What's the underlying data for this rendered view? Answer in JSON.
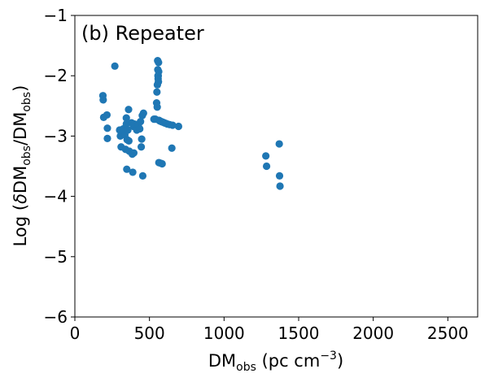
{
  "chart_data": {
    "type": "scatter",
    "panel_label": "(b) Repeater",
    "xlabel": {
      "main": "DM",
      "sub": "obs",
      "rest": " (pc cm",
      "sup": "−3",
      "end": ")"
    },
    "ylabel": {
      "p1": "Log (",
      "delta": "δ",
      "p2": "DM",
      "sub1": "obs",
      "p3": "/DM",
      "sub2": "obs",
      "p4": ")"
    },
    "xlim": [
      0,
      2700
    ],
    "ylim": [
      -6,
      -1
    ],
    "x_ticks": [
      0,
      500,
      1000,
      1500,
      2000,
      2500
    ],
    "y_ticks": [
      -6,
      -5,
      -4,
      -3,
      -2,
      -1
    ],
    "x_tick_labels": [
      "0",
      "500",
      "1000",
      "1500",
      "2000",
      "2500"
    ],
    "y_tick_labels": [
      "−6",
      "−5",
      "−4",
      "−3",
      "−2",
      "−1"
    ],
    "marker_color": "#1f77b4",
    "grid": false,
    "points": [
      {
        "x": 188,
        "y": -2.33
      },
      {
        "x": 190,
        "y": -2.4
      },
      {
        "x": 193,
        "y": -2.69
      },
      {
        "x": 215,
        "y": -2.65
      },
      {
        "x": 218,
        "y": -2.87
      },
      {
        "x": 218,
        "y": -3.04
      },
      {
        "x": 268,
        "y": -1.84
      },
      {
        "x": 300,
        "y": -2.9
      },
      {
        "x": 305,
        "y": -3.0
      },
      {
        "x": 310,
        "y": -3.18
      },
      {
        "x": 325,
        "y": -2.88
      },
      {
        "x": 335,
        "y": -2.98
      },
      {
        "x": 340,
        "y": -3.22
      },
      {
        "x": 345,
        "y": -2.7
      },
      {
        "x": 345,
        "y": -2.8
      },
      {
        "x": 348,
        "y": -3.55
      },
      {
        "x": 350,
        "y": -3.06
      },
      {
        "x": 355,
        "y": -2.9
      },
      {
        "x": 360,
        "y": -2.56
      },
      {
        "x": 362,
        "y": -3.08
      },
      {
        "x": 365,
        "y": -3.25
      },
      {
        "x": 380,
        "y": -2.78
      },
      {
        "x": 385,
        "y": -3.3
      },
      {
        "x": 388,
        "y": -3.6
      },
      {
        "x": 392,
        "y": -2.84
      },
      {
        "x": 395,
        "y": -3.28
      },
      {
        "x": 400,
        "y": -2.8
      },
      {
        "x": 415,
        "y": -2.9
      },
      {
        "x": 425,
        "y": -2.82
      },
      {
        "x": 435,
        "y": -2.88
      },
      {
        "x": 440,
        "y": -2.76
      },
      {
        "x": 445,
        "y": -3.18
      },
      {
        "x": 448,
        "y": -3.05
      },
      {
        "x": 452,
        "y": -2.66
      },
      {
        "x": 455,
        "y": -3.66
      },
      {
        "x": 460,
        "y": -2.62
      },
      {
        "x": 530,
        "y": -2.72
      },
      {
        "x": 540,
        "y": -2.72
      },
      {
        "x": 548,
        "y": -2.45
      },
      {
        "x": 550,
        "y": -2.27
      },
      {
        "x": 552,
        "y": -2.52
      },
      {
        "x": 553,
        "y": -2.15
      },
      {
        "x": 555,
        "y": -1.75
      },
      {
        "x": 556,
        "y": -1.9
      },
      {
        "x": 557,
        "y": -2.0
      },
      {
        "x": 558,
        "y": -2.05
      },
      {
        "x": 559,
        "y": -2.0
      },
      {
        "x": 560,
        "y": -2.1
      },
      {
        "x": 561,
        "y": -1.78
      },
      {
        "x": 562,
        "y": -1.93
      },
      {
        "x": 563,
        "y": -3.44
      },
      {
        "x": 565,
        "y": -2.74
      },
      {
        "x": 570,
        "y": -2.75
      },
      {
        "x": 575,
        "y": -3.45
      },
      {
        "x": 580,
        "y": -2.76
      },
      {
        "x": 585,
        "y": -3.46
      },
      {
        "x": 590,
        "y": -2.77
      },
      {
        "x": 600,
        "y": -2.78
      },
      {
        "x": 610,
        "y": -2.79
      },
      {
        "x": 620,
        "y": -2.8
      },
      {
        "x": 635,
        "y": -2.81
      },
      {
        "x": 650,
        "y": -3.2
      },
      {
        "x": 655,
        "y": -2.82
      },
      {
        "x": 695,
        "y": -2.84
      },
      {
        "x": 1280,
        "y": -3.33
      },
      {
        "x": 1285,
        "y": -3.5
      },
      {
        "x": 1370,
        "y": -3.13
      },
      {
        "x": 1372,
        "y": -3.66
      },
      {
        "x": 1375,
        "y": -3.83
      }
    ]
  }
}
